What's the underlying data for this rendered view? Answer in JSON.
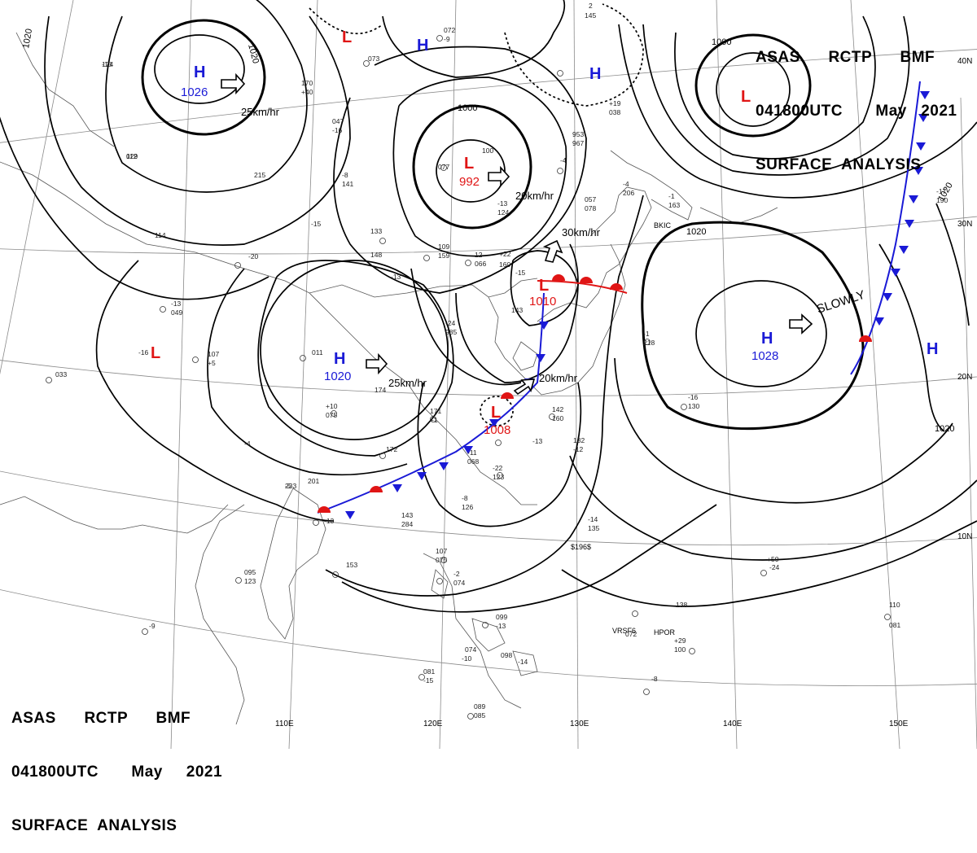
{
  "header_top_right": {
    "line1": "ASAS      RCTP      BMF",
    "line2": "041800UTC       May   2021",
    "line3": "SURFACE  ANALYSIS"
  },
  "header_bottom_left": {
    "line1": "ASAS      RCTP      BMF",
    "line2": "041800UTC       May     2021",
    "line3": "SURFACE  ANALYSIS"
  },
  "colors": {
    "high": "#1a1ad6",
    "low": "#e01515",
    "isobar": "#000000",
    "grid": "#888888",
    "coast": "#555555"
  },
  "grid_labels": {
    "lon": [
      "110E",
      "120E",
      "130E",
      "140E",
      "150E"
    ],
    "lat": [
      "40N",
      "30N",
      "20N",
      "10N"
    ]
  },
  "pressure_systems": [
    {
      "id": "h-nw",
      "type": "H",
      "value": "1026"
    },
    {
      "id": "h-north",
      "type": "H",
      "value": ""
    },
    {
      "id": "h-ne",
      "type": "H",
      "value": ""
    },
    {
      "id": "h-china",
      "type": "H",
      "value": "1020"
    },
    {
      "id": "h-pacific",
      "type": "H",
      "value": "1028"
    },
    {
      "id": "h-east",
      "type": "H",
      "value": ""
    },
    {
      "id": "l-top",
      "type": "L",
      "value": ""
    },
    {
      "id": "l-center",
      "type": "L",
      "value": "992"
    },
    {
      "id": "l-ne",
      "type": "L",
      "value": ""
    },
    {
      "id": "l-west",
      "type": "L",
      "value": ""
    },
    {
      "id": "l-korea",
      "type": "L",
      "value": "1010"
    },
    {
      "id": "l-taiwan",
      "type": "L",
      "value": "1008"
    }
  ],
  "isobar_labels": [
    "1020",
    "1020",
    "1000",
    "1000",
    "1020",
    "1020",
    "1020"
  ],
  "motion_labels": [
    "25km/hr",
    "20km/hr",
    "30km/hr",
    "25km/hr",
    "20km/hr",
    "SLOWLY"
  ],
  "station_labels": [
    "BKIC",
    "VRSF6",
    "HPOR",
    "$196$"
  ],
  "station_obs": [
    "174",
    "112",
    "233",
    "170",
    "+40",
    "047",
    "-16",
    "073",
    "072",
    "-9",
    "145",
    "2",
    "215",
    "-8",
    "141",
    "-15",
    "114",
    "-20",
    "133",
    "148",
    "-13",
    "109",
    "159",
    "12",
    "066",
    "-13",
    "049",
    "-16",
    "107",
    "+5",
    "033",
    "011",
    "+10",
    "075",
    "174",
    "171",
    "+1",
    "172",
    "-4",
    "201",
    "-13",
    "143",
    "284",
    "153",
    "095",
    "123",
    "-9",
    "107",
    "075",
    "-2",
    "074",
    "099",
    "-13",
    "074",
    "-10",
    "098",
    "-14",
    "081",
    "-15",
    "089",
    "085",
    "-11",
    "068",
    "-22",
    "123",
    "-8",
    "126",
    "-13",
    "132",
    "-12",
    "142",
    "160",
    "-14",
    "135",
    "-16",
    "130",
    "-1",
    "218",
    "-4",
    "206",
    "-1",
    "163",
    "-17",
    "190",
    "+50",
    "138",
    "+29",
    "100",
    "110",
    "081",
    "-8",
    "072",
    "-24",
    "077",
    "100",
    "-4",
    "953",
    "967",
    "057",
    "078",
    "-13",
    "124",
    "-24",
    "985",
    "-15",
    "143",
    "+19",
    "038",
    "+22",
    "160",
    "-13",
    "029",
    "-5"
  ]
}
